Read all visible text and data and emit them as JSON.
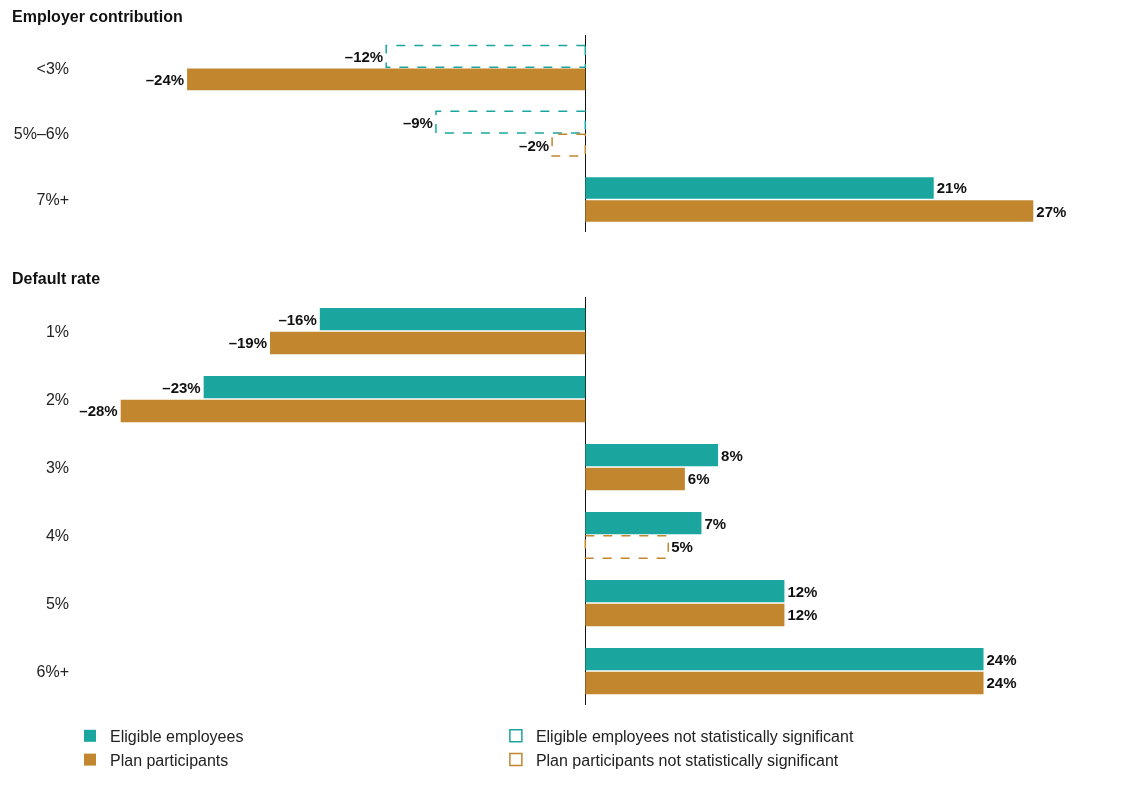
{
  "chart_data": [
    {
      "type": "bar",
      "orientation": "horizontal",
      "title": "Employer contribution",
      "categories": [
        "<3%",
        "5%–6%",
        "7%+"
      ],
      "tick_labels": "y",
      "legend": "bottom",
      "series": [
        {
          "name": "Eligible employees",
          "color": "#1aa69e",
          "values": [
            null,
            null,
            21
          ],
          "value_labels": [
            null,
            null,
            "21%"
          ]
        },
        {
          "name": "Plan participants",
          "color": "#c1862e",
          "values": [
            -24,
            null,
            27
          ],
          "value_labels": [
            "–24%",
            null,
            "27%"
          ]
        },
        {
          "name": "Eligible employees not statistically significant",
          "color": "#1aa69e",
          "line_style": "dashed",
          "values": [
            -12,
            -9,
            null
          ],
          "value_labels": [
            "–12%",
            "–9%",
            null
          ]
        },
        {
          "name": "Plan participants not statistically significant",
          "color": "#c1862e",
          "line_style": "dashed",
          "values": [
            null,
            -2,
            null
          ],
          "value_labels": [
            null,
            "–2%",
            null
          ]
        }
      ]
    },
    {
      "type": "bar",
      "orientation": "horizontal",
      "title": "Default rate",
      "categories": [
        "1%",
        "2%",
        "3%",
        "4%",
        "5%",
        "6%+"
      ],
      "tick_labels": "y",
      "legend": "bottom",
      "series": [
        {
          "name": "Eligible employees",
          "color": "#1aa69e",
          "values": [
            -16,
            -23,
            8,
            7,
            12,
            24
          ],
          "value_labels": [
            "–16%",
            "–23%",
            "8%",
            "7%",
            "12%",
            "24%"
          ]
        },
        {
          "name": "Plan participants",
          "color": "#c1862e",
          "values": [
            -19,
            -28,
            6,
            null,
            12,
            24
          ],
          "value_labels": [
            "–19%",
            "–28%",
            "6%",
            null,
            "12%",
            "24%"
          ]
        },
        {
          "name": "Eligible employees not statistically significant",
          "color": "#1aa69e",
          "line_style": "dashed",
          "values": [
            null,
            null,
            null,
            null,
            null,
            null
          ],
          "value_labels": [
            null,
            null,
            null,
            null,
            null,
            null
          ]
        },
        {
          "name": "Plan participants not statistically significant",
          "color": "#c1862e",
          "line_style": "dashed",
          "values": [
            null,
            null,
            null,
            5,
            null,
            null
          ],
          "value_labels": [
            null,
            null,
            null,
            "5%",
            null,
            null
          ]
        }
      ]
    }
  ]
}
